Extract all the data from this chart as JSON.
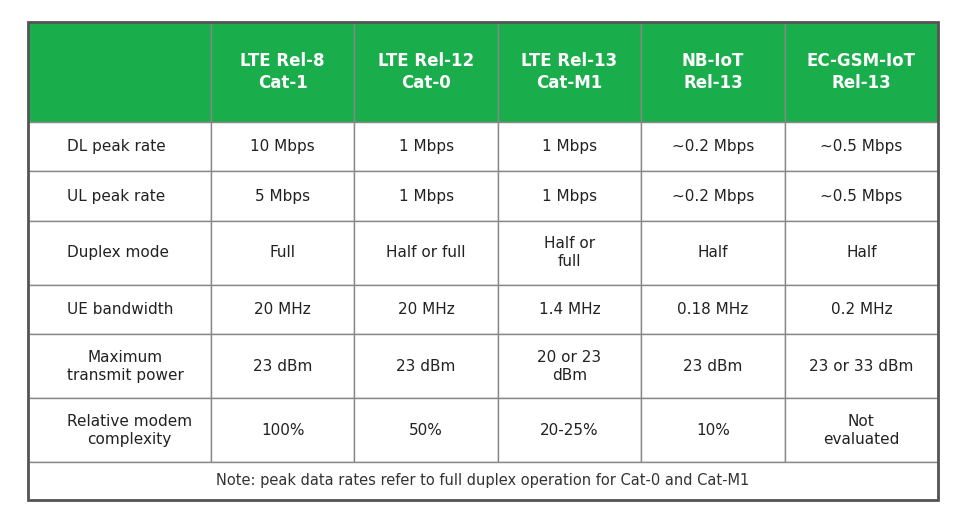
{
  "header_bg_color": "#1AAD4B",
  "header_text_color": "#FFFFFF",
  "row_bg_color": "#FFFFFF",
  "row_text_color": "#222222",
  "border_color": "#888888",
  "note_bg_color": "#FFFFFF",
  "note_text_color": "#333333",
  "outer_bg_color": "#FFFFFF",
  "header_row": [
    "",
    "LTE Rel-8\nCat-1",
    "LTE Rel-12\nCat-0",
    "LTE Rel-13\nCat-M1",
    "NB-IoT\nRel-13",
    "EC-GSM-IoT\nRel-13"
  ],
  "rows": [
    [
      "DL peak rate",
      "10 Mbps",
      "1 Mbps",
      "1 Mbps",
      "~0.2 Mbps",
      "~0.5 Mbps"
    ],
    [
      "UL peak rate",
      "5 Mbps",
      "1 Mbps",
      "1 Mbps",
      "~0.2 Mbps",
      "~0.5 Mbps"
    ],
    [
      "Duplex mode",
      "Full",
      "Half or full",
      "Half or\nfull",
      "Half",
      "Half"
    ],
    [
      "UE bandwidth",
      "20 MHz",
      "20 MHz",
      "1.4 MHz",
      "0.18 MHz",
      "0.2 MHz"
    ],
    [
      "Maximum\ntransmit power",
      "23 dBm",
      "23 dBm",
      "20 or 23\ndBm",
      "23 dBm",
      "23 or 33 dBm"
    ],
    [
      "Relative modem\ncomplexity",
      "100%",
      "50%",
      "20-25%",
      "10%",
      "Not\nevaluated"
    ]
  ],
  "note": "Note: peak data rates refer to full duplex operation for Cat-0 and Cat-M1",
  "figsize": [
    9.6,
    5.22
  ],
  "dpi": 100
}
